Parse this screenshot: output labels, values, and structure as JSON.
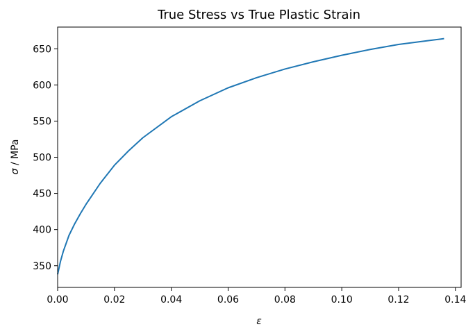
{
  "chart_data": {
    "type": "line",
    "title": "True Stress vs True Plastic Strain",
    "xlabel_symbol": "ε",
    "xlabel_rest": "",
    "ylabel_symbol": "σ",
    "ylabel_rest": " / MPa",
    "xlim": [
      0.0,
      0.142
    ],
    "ylim": [
      320,
      680
    ],
    "xticks": [
      0.0,
      0.02,
      0.04,
      0.06,
      0.08,
      0.1,
      0.12,
      0.14
    ],
    "xtick_labels": [
      "0.00",
      "0.02",
      "0.04",
      "0.06",
      "0.08",
      "0.10",
      "0.12",
      "0.14"
    ],
    "yticks": [
      350,
      400,
      450,
      500,
      550,
      600,
      650
    ],
    "ytick_labels": [
      "350",
      "400",
      "450",
      "500",
      "550",
      "600",
      "650"
    ],
    "grid": false,
    "series": [
      {
        "color": "#1f77b4",
        "x": [
          0.0,
          0.001,
          0.002,
          0.004,
          0.006,
          0.008,
          0.01,
          0.015,
          0.02,
          0.025,
          0.03,
          0.04,
          0.05,
          0.06,
          0.07,
          0.08,
          0.09,
          0.1,
          0.11,
          0.12,
          0.13,
          0.136
        ],
        "y": [
          338,
          356,
          370,
          392,
          408,
          422,
          435,
          464,
          489,
          509,
          527,
          556,
          578,
          596,
          610,
          622,
          632,
          641,
          649,
          656,
          661,
          664
        ]
      }
    ]
  }
}
